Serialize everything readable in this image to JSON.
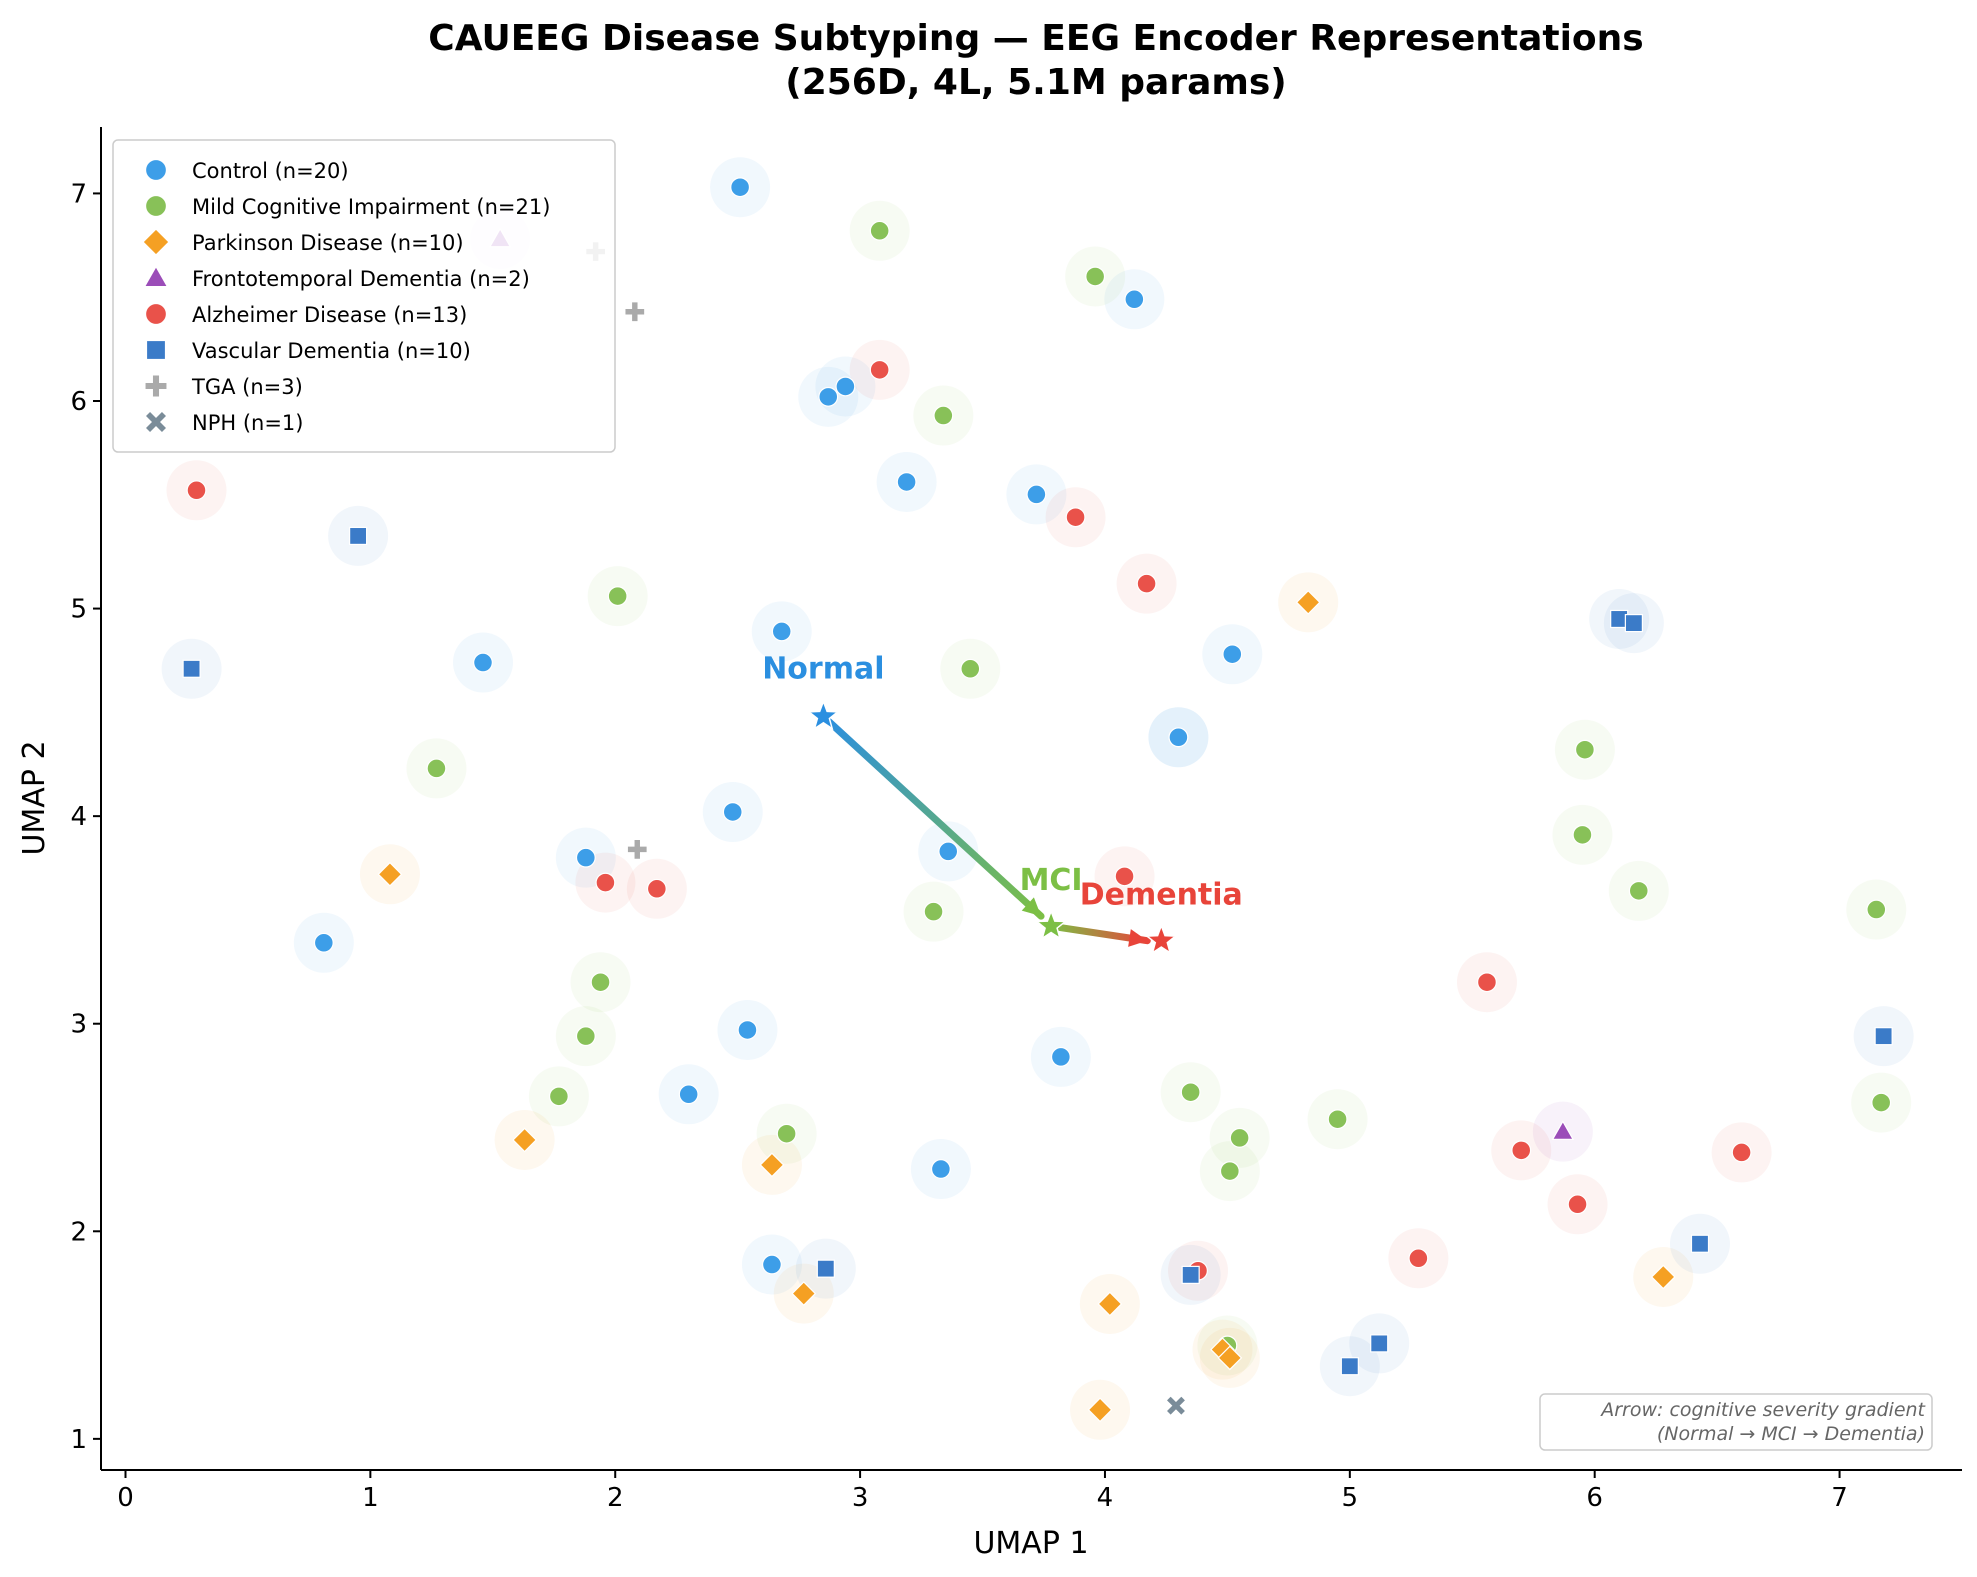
{
  "chart_data": {
    "type": "scatter",
    "title": "CAUEEG Disease Subtyping — EEG Encoder Representations",
    "subtitle": "(256D, 4L, 5.1M params)",
    "xlabel": "UMAP 1",
    "ylabel": "UMAP 2",
    "xlim": [
      -0.1,
      7.5
    ],
    "ylim": [
      0.85,
      7.32
    ],
    "xticks": [
      0,
      1,
      2,
      3,
      4,
      5,
      6,
      7
    ],
    "yticks": [
      1,
      2,
      3,
      4,
      5,
      6,
      7
    ],
    "grid": false,
    "legend_position": "top-left",
    "series": [
      {
        "name": "Control (n=20)",
        "color": "#3d9ee8",
        "marker": "circle",
        "points": [
          [
            2.51,
            7.03
          ],
          [
            4.12,
            6.49
          ],
          [
            2.94,
            6.07
          ],
          [
            2.87,
            6.02
          ],
          [
            3.19,
            5.61
          ],
          [
            3.72,
            5.55
          ],
          [
            2.68,
            4.89
          ],
          [
            1.46,
            4.74
          ],
          [
            4.52,
            4.78
          ],
          [
            4.3,
            4.38
          ],
          [
            2.48,
            4.02
          ],
          [
            3.36,
            3.83
          ],
          [
            1.88,
            3.8
          ],
          [
            0.81,
            3.39
          ],
          [
            2.54,
            2.97
          ],
          [
            3.82,
            2.84
          ],
          [
            2.3,
            2.66
          ],
          [
            3.33,
            2.3
          ],
          [
            2.64,
            1.84
          ],
          [
            4.3,
            4.38
          ]
        ]
      },
      {
        "name": "Mild Cognitive Impairment (n=21)",
        "color": "#88c158",
        "marker": "circle",
        "points": [
          [
            3.08,
            6.82
          ],
          [
            3.96,
            6.6
          ],
          [
            3.34,
            5.93
          ],
          [
            2.01,
            5.06
          ],
          [
            3.45,
            4.71
          ],
          [
            1.27,
            4.23
          ],
          [
            5.96,
            4.32
          ],
          [
            5.95,
            3.91
          ],
          [
            6.18,
            3.64
          ],
          [
            7.15,
            3.55
          ],
          [
            3.3,
            3.54
          ],
          [
            1.94,
            3.2
          ],
          [
            1.88,
            2.94
          ],
          [
            1.77,
            2.65
          ],
          [
            4.35,
            2.67
          ],
          [
            4.95,
            2.54
          ],
          [
            2.7,
            2.47
          ],
          [
            4.55,
            2.45
          ],
          [
            4.51,
            2.29
          ],
          [
            7.17,
            2.62
          ],
          [
            4.5,
            1.45
          ]
        ]
      },
      {
        "name": "Parkinson Disease (n=10)",
        "color": "#f5a023",
        "marker": "diamond",
        "points": [
          [
            4.83,
            5.03
          ],
          [
            1.08,
            3.72
          ],
          [
            1.63,
            2.44
          ],
          [
            2.64,
            2.32
          ],
          [
            2.77,
            1.7
          ],
          [
            4.02,
            1.65
          ],
          [
            6.28,
            1.78
          ],
          [
            4.48,
            1.43
          ],
          [
            4.51,
            1.39
          ],
          [
            3.98,
            1.14
          ]
        ]
      },
      {
        "name": "Frontotemporal Dementia (n=2)",
        "color": "#9b4db8",
        "marker": "triangle",
        "points": [
          [
            1.53,
            6.78
          ],
          [
            5.87,
            2.48
          ]
        ]
      },
      {
        "name": "Alzheimer Disease (n=13)",
        "color": "#e9524a",
        "marker": "circle",
        "points": [
          [
            0.29,
            5.57
          ],
          [
            3.08,
            6.15
          ],
          [
            3.88,
            5.44
          ],
          [
            4.17,
            5.12
          ],
          [
            1.96,
            3.68
          ],
          [
            2.17,
            3.65
          ],
          [
            4.08,
            3.71
          ],
          [
            5.56,
            3.2
          ],
          [
            5.7,
            2.39
          ],
          [
            6.6,
            2.38
          ],
          [
            5.93,
            2.13
          ],
          [
            5.28,
            1.87
          ],
          [
            4.38,
            1.81
          ]
        ]
      },
      {
        "name": "Vascular Dementia (n=10)",
        "color": "#3b7bc8",
        "marker": "square",
        "points": [
          [
            0.95,
            5.35
          ],
          [
            0.27,
            4.71
          ],
          [
            6.1,
            4.95
          ],
          [
            6.16,
            4.93
          ],
          [
            7.18,
            2.94
          ],
          [
            2.86,
            1.82
          ],
          [
            4.35,
            1.79
          ],
          [
            6.43,
            1.94
          ],
          [
            5.12,
            1.46
          ],
          [
            5.0,
            1.35
          ]
        ]
      },
      {
        "name": "TGA (n=3)",
        "color": "#aaaaaa",
        "marker": "plus",
        "points": [
          [
            1.92,
            6.72
          ],
          [
            2.08,
            6.43
          ],
          [
            2.09,
            3.84
          ]
        ]
      },
      {
        "name": "NPH (n=1)",
        "color": "#7a8c99",
        "marker": "x",
        "points": [
          [
            4.29,
            1.16
          ]
        ]
      }
    ],
    "centroids": [
      {
        "label": "Normal",
        "x": 2.85,
        "y": 4.48,
        "color": "#2b8fe0"
      },
      {
        "label": "MCI",
        "x": 3.78,
        "y": 3.47,
        "color": "#7cbf45"
      },
      {
        "label": "Dementia",
        "x": 4.23,
        "y": 3.4,
        "color": "#e8443a"
      }
    ],
    "annotation": {
      "line1": "Arrow: cognitive severity gradient",
      "line2": "(Normal → MCI → Dementia)"
    }
  }
}
